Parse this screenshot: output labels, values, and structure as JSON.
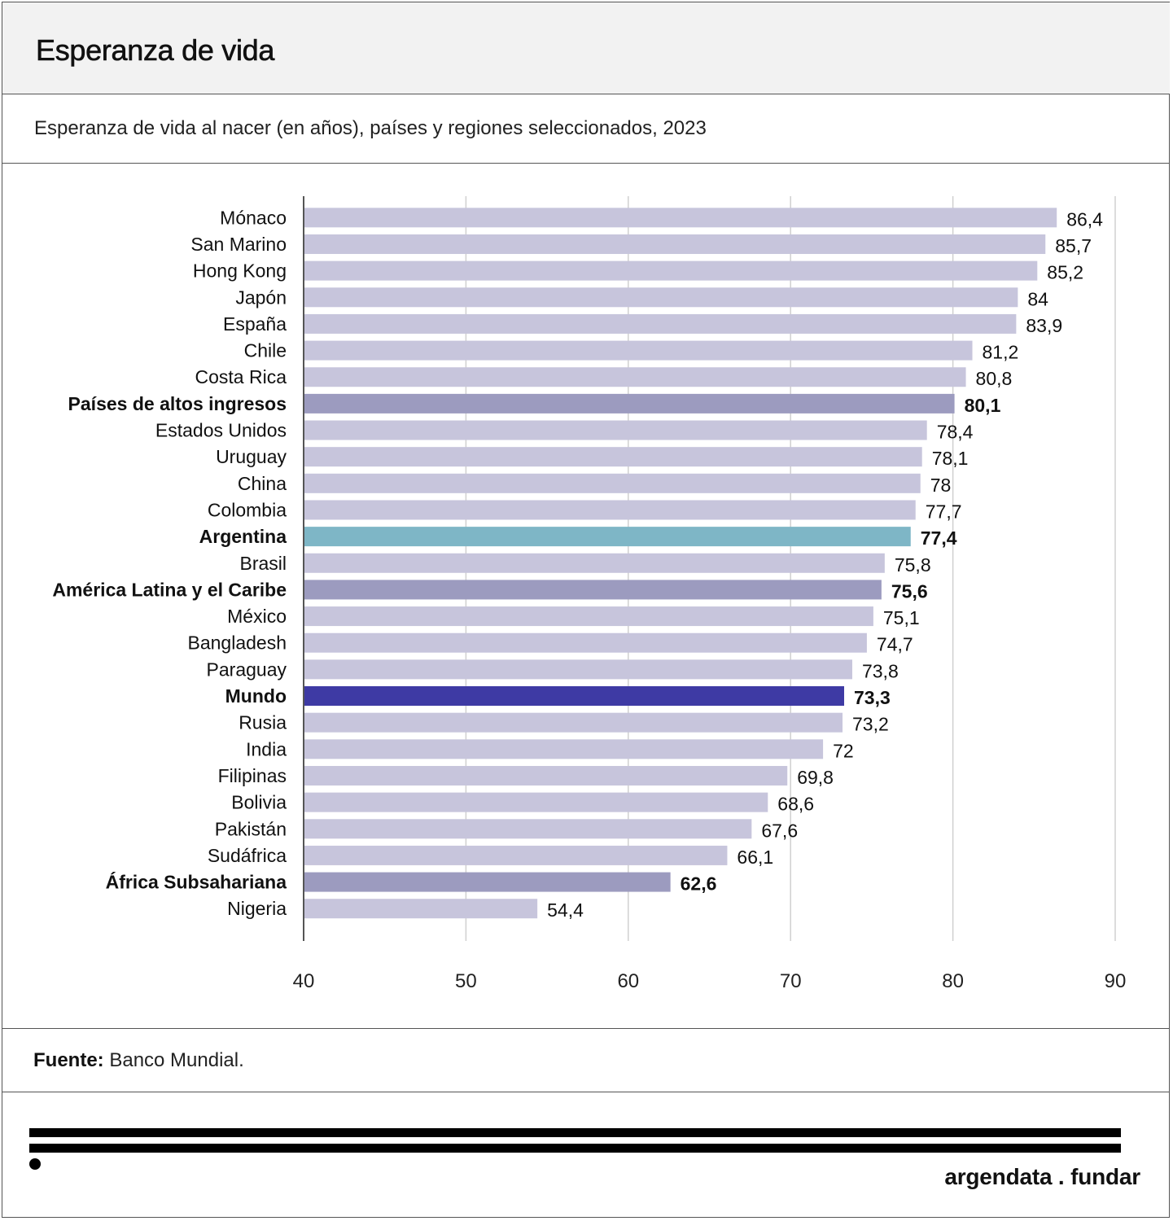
{
  "title": "Esperanza de vida",
  "subtitle": "Esperanza de vida al nacer (en años), países y regiones seleccionados, 2023",
  "source_label": "Fuente:",
  "source_text": " Banco Mundial.",
  "brand": "argendata . fundar",
  "colors": {
    "country": "#c7c5dc",
    "region": "#9c9bbf",
    "argentina": "#7eb6c6",
    "world": "#3e3aa4",
    "grid": "#d0d0d0",
    "axis": "#555555"
  },
  "chart_data": {
    "type": "bar",
    "orientation": "horizontal",
    "title": "Esperanza de vida",
    "xlim": [
      40,
      90
    ],
    "xticks": [
      "40",
      "50",
      "60",
      "70",
      "80",
      "90"
    ],
    "grid": true,
    "categories": [
      "Mónaco",
      "San Marino",
      "Hong Kong",
      "Japón",
      "España",
      "Chile",
      "Costa Rica",
      "Países de altos ingresos",
      "Estados Unidos",
      "Uruguay",
      "China",
      "Colombia",
      "Argentina",
      "Brasil",
      "América Latina y el Caribe",
      "México",
      "Bangladesh",
      "Paraguay",
      "Mundo",
      "Rusia",
      "India",
      "Filipinas",
      "Bolivia",
      "Pakistán",
      "Sudáfrica",
      "África Subsahariana",
      "Nigeria"
    ],
    "values": [
      86.4,
      85.7,
      85.2,
      84,
      83.9,
      81.2,
      80.8,
      80.1,
      78.4,
      78.1,
      78,
      77.7,
      77.4,
      75.8,
      75.6,
      75.1,
      74.7,
      73.8,
      73.3,
      73.2,
      72,
      69.8,
      68.6,
      67.6,
      66.1,
      62.6,
      54.4
    ],
    "labels": [
      "86,4",
      "85,7",
      "85,2",
      "84",
      "83,9",
      "81,2",
      "80,8",
      "80,1",
      "78,4",
      "78,1",
      "78",
      "77,7",
      "77,4",
      "75,8",
      "75,6",
      "75,1",
      "74,7",
      "73,8",
      "73,3",
      "73,2",
      "72",
      "69,8",
      "68,6",
      "67,6",
      "66,1",
      "62,6",
      "54,4"
    ],
    "kinds": [
      "country",
      "country",
      "country",
      "country",
      "country",
      "country",
      "country",
      "region",
      "country",
      "country",
      "country",
      "country",
      "argentina",
      "country",
      "region",
      "country",
      "country",
      "country",
      "world",
      "country",
      "country",
      "country",
      "country",
      "country",
      "country",
      "region",
      "country"
    ]
  }
}
